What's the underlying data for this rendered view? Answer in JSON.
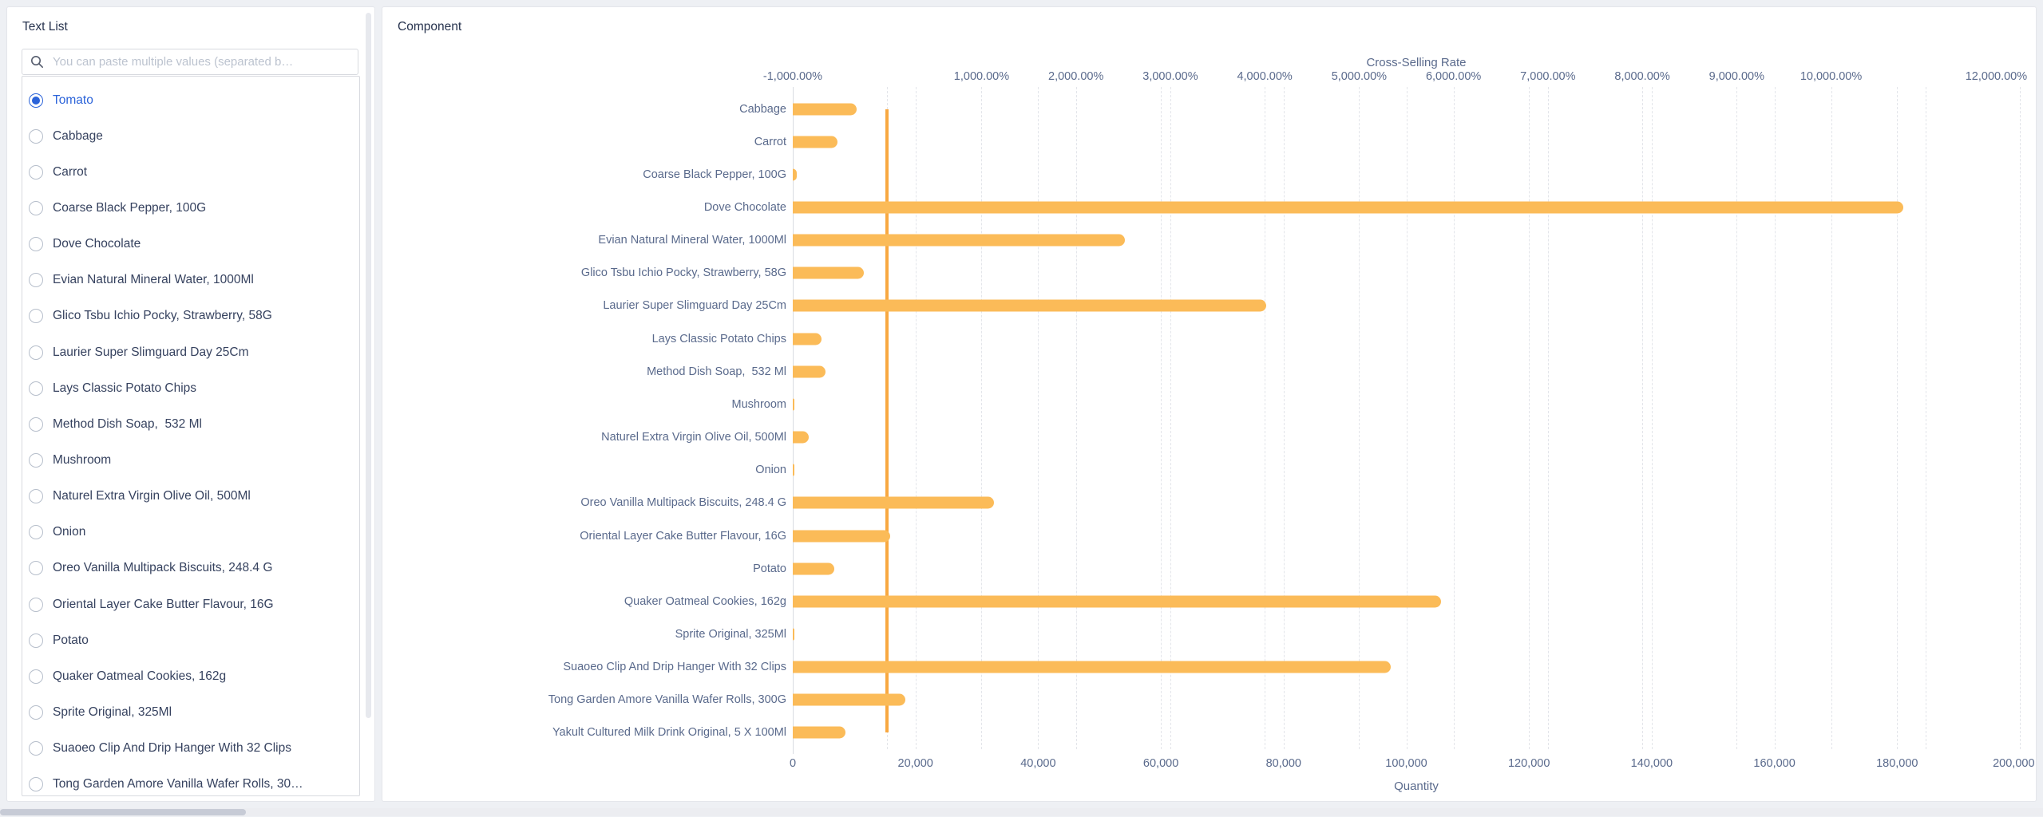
{
  "colors": {
    "primary": "#2B63D9",
    "bar": "#FBBB58",
    "line": "#F8A841"
  },
  "sidebar": {
    "title": "Text List",
    "search_placeholder": "You can paste multiple values (separated b…",
    "items": [
      {
        "label": "Tomato",
        "selected": true
      },
      {
        "label": "Cabbage",
        "selected": false
      },
      {
        "label": "Carrot",
        "selected": false
      },
      {
        "label": "Coarse Black Pepper, 100G",
        "selected": false
      },
      {
        "label": "Dove Chocolate",
        "selected": false
      },
      {
        "label": "Evian Natural Mineral Water, 1000Ml",
        "selected": false
      },
      {
        "label": "Glico Tsbu Ichio Pocky, Strawberry, 58G",
        "selected": false
      },
      {
        "label": "Laurier Super Slimguard Day 25Cm",
        "selected": false
      },
      {
        "label": "Lays Classic Potato Chips",
        "selected": false
      },
      {
        "label": "Method Dish Soap,  532 Ml",
        "selected": false
      },
      {
        "label": "Mushroom",
        "selected": false
      },
      {
        "label": "Naturel Extra Virgin Olive Oil, 500Ml",
        "selected": false
      },
      {
        "label": "Onion",
        "selected": false
      },
      {
        "label": "Oreo Vanilla Multipack Biscuits, 248.4 G",
        "selected": false
      },
      {
        "label": "Oriental Layer Cake Butter Flavour, 16G",
        "selected": false
      },
      {
        "label": "Potato",
        "selected": false
      },
      {
        "label": "Quaker Oatmeal Cookies, 162g",
        "selected": false
      },
      {
        "label": "Sprite Original, 325Ml",
        "selected": false
      },
      {
        "label": "Suaoeo Clip And Drip Hanger With 32 Clips",
        "selected": false
      },
      {
        "label": "Tong Garden Amore Vanilla Wafer Rolls, 30…",
        "selected": false
      }
    ]
  },
  "main": {
    "title": "Component"
  },
  "chart_data": {
    "type": "bar",
    "orientation": "horizontal",
    "grid": true,
    "legend": "none",
    "top_axis": {
      "name": "Cross-Selling Rate",
      "min": -1000,
      "max": 12000,
      "unit": "%",
      "ticks": [
        {
          "value": -1000,
          "label": "-1,000.00%",
          "grid": false
        },
        {
          "value": 0,
          "label": "",
          "grid": true
        },
        {
          "value": 1000,
          "label": "1,000.00%",
          "grid": true
        },
        {
          "value": 2000,
          "label": "2,000.00%",
          "grid": true
        },
        {
          "value": 3000,
          "label": "3,000.00%",
          "grid": true
        },
        {
          "value": 4000,
          "label": "4,000.00%",
          "grid": true
        },
        {
          "value": 5000,
          "label": "5,000.00%",
          "grid": true
        },
        {
          "value": 6000,
          "label": "6,000.00%",
          "grid": true
        },
        {
          "value": 7000,
          "label": "7,000.00%",
          "grid": true
        },
        {
          "value": 8000,
          "label": "8,000.00%",
          "grid": true
        },
        {
          "value": 9000,
          "label": "9,000.00%",
          "grid": true
        },
        {
          "value": 10000,
          "label": "10,000.00%",
          "grid": true
        },
        {
          "value": 11000,
          "label": "",
          "grid": true
        },
        {
          "value": 12000,
          "label": "12,000.00%",
          "label_value": 11750,
          "grid": true
        }
      ]
    },
    "bottom_axis": {
      "name": "Quantity",
      "min": 0,
      "max": 200000,
      "ticks": [
        {
          "value": 0,
          "label": "0",
          "grid": false
        },
        {
          "value": 20000,
          "label": "20,000",
          "grid": true
        },
        {
          "value": 40000,
          "label": "40,000",
          "grid": true
        },
        {
          "value": 60000,
          "label": "60,000",
          "grid": true
        },
        {
          "value": 80000,
          "label": "80,000",
          "grid": true
        },
        {
          "value": 100000,
          "label": "100,000",
          "grid": true
        },
        {
          "value": 120000,
          "label": "120,000",
          "grid": true
        },
        {
          "value": 140000,
          "label": "140,000",
          "grid": true
        },
        {
          "value": 160000,
          "label": "160,000",
          "grid": true
        },
        {
          "value": 180000,
          "label": "180,000",
          "grid": true
        },
        {
          "value": 200000,
          "label": "200,000",
          "label_value": 199000,
          "grid": true
        }
      ]
    },
    "categories": [
      "Cabbage",
      "Carrot",
      "Coarse Black Pepper, 100G",
      "Dove Chocolate",
      "Evian Natural Mineral Water, 1000Ml",
      "Glico Tsbu Ichio Pocky, Strawberry, 58G",
      "Laurier Super Slimguard Day 25Cm",
      "Lays Classic Potato Chips",
      "Method Dish Soap,  532 Ml",
      "Mushroom",
      "Naturel Extra Virgin Olive Oil, 500Ml",
      "Onion",
      "Oreo Vanilla Multipack Biscuits, 248.4 G",
      "Oriental Layer Cake Butter Flavour, 16G",
      "Potato",
      "Quaker Oatmeal Cookies, 162g",
      "Sprite Original, 325Ml",
      "Suaoeo Clip And Drip Hanger With 32 Clips",
      "Tong Garden Amore Vanilla Wafer Rolls, 300G",
      "Yakult Cultured Milk Drink Original, 5 X 100Ml"
    ],
    "series": [
      {
        "name": "Quantity",
        "type": "bar",
        "color": "#FBBB58",
        "values": [
          10400,
          7300,
          600,
          181000,
          54100,
          11600,
          77200,
          4700,
          5300,
          300,
          2600,
          300,
          32800,
          15900,
          6800,
          105600,
          250,
          97500,
          18400,
          8600
        ]
      },
      {
        "name": "Cross-Selling Rate",
        "type": "line",
        "color": "#F8A841",
        "unit": "%",
        "values": [
          0,
          0,
          0,
          0,
          0,
          0,
          0,
          0,
          0,
          0,
          0,
          0,
          0,
          0,
          0,
          0,
          0,
          0,
          0,
          0
        ]
      }
    ]
  }
}
